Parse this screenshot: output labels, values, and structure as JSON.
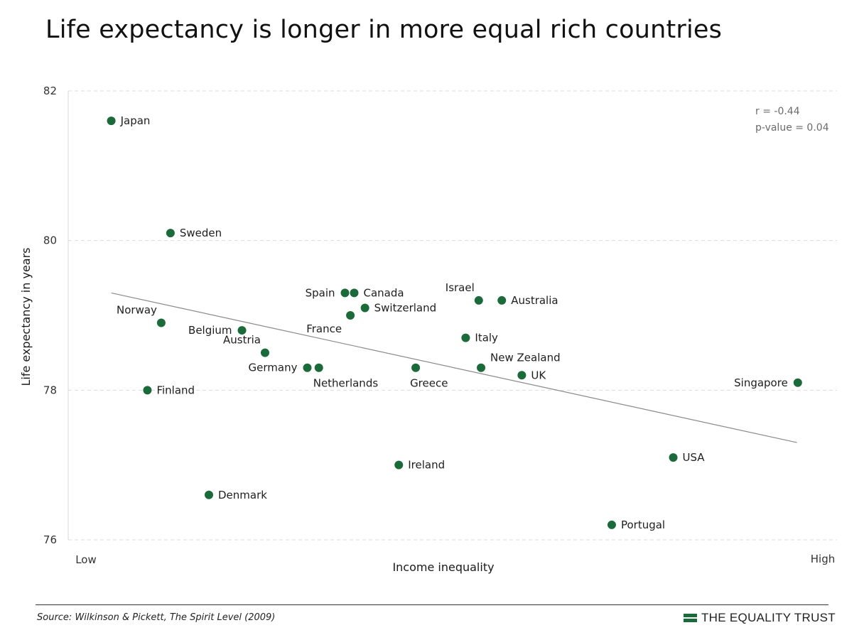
{
  "chart_data": {
    "type": "scatter",
    "title": "Life expectancy is longer in more equal rich countries",
    "xlabel": "Income inequality",
    "ylabel": "Life expectancy in years",
    "x_tick_labels": {
      "low": "Low",
      "high": "High"
    },
    "ylim": [
      76,
      82
    ],
    "yticks": [
      76,
      78,
      80,
      82
    ],
    "xlim": [
      0,
      100
    ],
    "grid": "horizontal dashed",
    "point_color": "#1b6b3a",
    "trendline": {
      "start": [
        5.6,
        79.3
      ],
      "end": [
        94.8,
        77.3
      ]
    },
    "annotations": [
      "r = -0.44",
      "p-value = 0.04"
    ],
    "points": [
      {
        "label": "Japan",
        "x": 5.6,
        "y": 81.6,
        "label_pos": "right"
      },
      {
        "label": "Sweden",
        "x": 13.3,
        "y": 80.1,
        "label_pos": "right"
      },
      {
        "label": "Norway",
        "x": 12.1,
        "y": 78.9,
        "label_pos": "above-left"
      },
      {
        "label": "Finland",
        "x": 10.3,
        "y": 78.0,
        "label_pos": "right"
      },
      {
        "label": "Denmark",
        "x": 18.3,
        "y": 76.6,
        "label_pos": "right"
      },
      {
        "label": "Belgium",
        "x": 22.6,
        "y": 78.8,
        "label_pos": "left"
      },
      {
        "label": "Austria",
        "x": 25.6,
        "y": 78.5,
        "label_pos": "above-left"
      },
      {
        "label": "Germany",
        "x": 31.1,
        "y": 78.3,
        "label_pos": "left"
      },
      {
        "label": "Netherlands",
        "x": 32.6,
        "y": 78.3,
        "label_pos": "below-right"
      },
      {
        "label": "Spain",
        "x": 36.0,
        "y": 79.3,
        "label_pos": "left"
      },
      {
        "label": "Canada",
        "x": 37.2,
        "y": 79.3,
        "label_pos": "right"
      },
      {
        "label": "France",
        "x": 36.7,
        "y": 79.0,
        "label_pos": "below-left"
      },
      {
        "label": "Switzerland",
        "x": 38.6,
        "y": 79.1,
        "label_pos": "right"
      },
      {
        "label": "Greece",
        "x": 45.2,
        "y": 78.3,
        "label_pos": "below-right"
      },
      {
        "label": "Ireland",
        "x": 43.0,
        "y": 77.0,
        "label_pos": "right"
      },
      {
        "label": "Israel",
        "x": 53.4,
        "y": 79.2,
        "label_pos": "above-left"
      },
      {
        "label": "Australia",
        "x": 56.4,
        "y": 79.2,
        "label_pos": "right"
      },
      {
        "label": "Italy",
        "x": 51.7,
        "y": 78.7,
        "label_pos": "right"
      },
      {
        "label": "New Zealand",
        "x": 53.7,
        "y": 78.3,
        "label_pos": "above-right"
      },
      {
        "label": "UK",
        "x": 59.0,
        "y": 78.2,
        "label_pos": "right"
      },
      {
        "label": "Portugal",
        "x": 70.7,
        "y": 76.2,
        "label_pos": "right"
      },
      {
        "label": "USA",
        "x": 78.7,
        "y": 77.1,
        "label_pos": "right"
      },
      {
        "label": "Singapore",
        "x": 94.9,
        "y": 78.1,
        "label_pos": "left"
      }
    ]
  },
  "footer": {
    "source": "Source: Wilkinson & Pickett, The Spirit Level (2009)",
    "brand": "THE EQUALITY TRUST",
    "brand_icon": "equals-bars-icon"
  }
}
